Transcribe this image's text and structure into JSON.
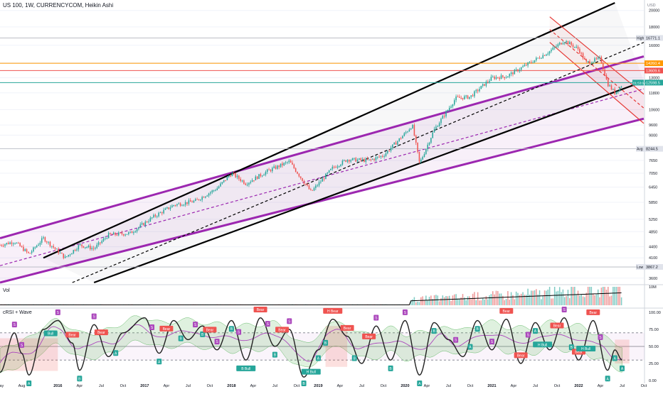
{
  "header": {
    "title": "US 100, 1W, CURRENCYCOM, Heikin Ashi"
  },
  "panes": {
    "volume_label": "Vol",
    "crsi_label": "cRSI + Wave"
  },
  "colors": {
    "up": "#26a69a",
    "down": "#ef5350",
    "purple": "#9c27b0",
    "black": "#000000",
    "red": "#e53935",
    "orange": "#ff9800",
    "wave": "#ab47bc"
  },
  "chart_data": [
    {
      "type": "candlestick",
      "title": "US 100, 1W, CURRENCYCOM, Heikin Ashi",
      "y_unit": "USD",
      "y_scale": "log",
      "ylim": [
        3500,
        21000
      ],
      "x_range": [
        "2015-05",
        "2022-10"
      ],
      "x_tick_labels": [
        "May",
        "Aug",
        "2016",
        "Apr",
        "Jul",
        "Oct",
        "2017",
        "Apr",
        "Jul",
        "Oct",
        "2018",
        "Apr",
        "Jul",
        "Oct",
        "2019",
        "Apr",
        "Jul",
        "Oct",
        "2020",
        "Apr",
        "Jul",
        "Oct",
        "2021",
        "Apr",
        "Jul",
        "Oct",
        "2022",
        "Apr",
        "Jul",
        "Oct"
      ],
      "y_ticks": [
        3600,
        4100,
        4400,
        4850,
        5250,
        5850,
        6450,
        7050,
        7650,
        8250,
        9000,
        9600,
        10600,
        11800,
        13000,
        14300,
        16000,
        18000,
        20000
      ],
      "price_path": [
        [
          "2015-05",
          4450
        ],
        [
          "2015-07",
          4550
        ],
        [
          "2015-09",
          4200
        ],
        [
          "2015-11",
          4650
        ],
        [
          "2016-02",
          4100
        ],
        [
          "2016-04",
          4450
        ],
        [
          "2016-06",
          4350
        ],
        [
          "2016-08",
          4750
        ],
        [
          "2016-11",
          4800
        ],
        [
          "2017-02",
          5300
        ],
        [
          "2017-05",
          5750
        ],
        [
          "2017-08",
          5900
        ],
        [
          "2017-11",
          6400
        ],
        [
          "2018-01",
          7050
        ],
        [
          "2018-03",
          6600
        ],
        [
          "2018-06",
          7150
        ],
        [
          "2018-09",
          7600
        ],
        [
          "2018-12",
          6250
        ],
        [
          "2019-03",
          7300
        ],
        [
          "2019-05",
          7700
        ],
        [
          "2019-08",
          7650
        ],
        [
          "2019-10",
          7900
        ],
        [
          "2020-01",
          9100
        ],
        [
          "2020-02",
          9600
        ],
        [
          "2020-03",
          7500
        ],
        [
          "2020-05",
          9300
        ],
        [
          "2020-08",
          11400
        ],
        [
          "2020-10",
          11500
        ],
        [
          "2021-01",
          13000
        ],
        [
          "2021-03",
          13100
        ],
        [
          "2021-06",
          14200
        ],
        [
          "2021-09",
          15400
        ],
        [
          "2021-11",
          16500
        ],
        [
          "2022-01",
          15600
        ],
        [
          "2022-02",
          14300
        ],
        [
          "2022-04",
          14700
        ],
        [
          "2022-05",
          12500
        ],
        [
          "2022-06",
          11800
        ],
        [
          "2022-07",
          12400
        ]
      ],
      "levels": [
        {
          "label": "High",
          "value": 16771.1
        },
        {
          "label": "",
          "value": 14260.4,
          "color": "#ff9800"
        },
        {
          "label": "",
          "value": 13609.6,
          "color": "#ef5350"
        },
        {
          "label": "",
          "value": 12598.5,
          "color": "#26a69a"
        },
        {
          "label": "Avg",
          "value": 8244.5
        },
        {
          "label": "Low",
          "value": 3867.2
        }
      ],
      "axis_tag": "01:53:00",
      "channels": [
        {
          "name": "",
          "color": "#9c27b0",
          "style": "solid",
          "points": [
            [
              "2015-05",
              4650
            ],
            [
              "2022-10",
              14900
            ]
          ]
        },
        {
          "name": "",
          "color": "#9c27b0",
          "style": "solid",
          "points": [
            [
              "2015-05",
              3500
            ],
            [
              "2022-10",
              10000
            ]
          ]
        },
        {
          "name": "",
          "color": "#9c27b0",
          "style": "dashed",
          "points": [
            [
              "2015-05",
              3900
            ],
            [
              "2022-10",
              12100
            ]
          ]
        },
        {
          "name": "",
          "color": "#000000",
          "style": "solid",
          "points": [
            [
              "2015-11",
              4100
            ],
            [
              "2022-06",
              21000
            ]
          ]
        },
        {
          "name": "",
          "color": "#000000",
          "style": "solid",
          "points": [
            [
              "2016-06",
              3500
            ],
            [
              "2022-10",
              12700
            ]
          ]
        },
        {
          "name": "",
          "color": "#000000",
          "style": "dashed",
          "points": [
            [
              "2016-03",
              3500
            ],
            [
              "2022-10",
              16300
            ]
          ]
        },
        {
          "name": "",
          "color": "#e53935",
          "style": "solid",
          "points": [
            [
              "2021-09",
              19200
            ],
            [
              "2022-10",
              11700
            ]
          ]
        },
        {
          "name": "",
          "color": "#e53935",
          "style": "solid",
          "points": [
            [
              "2021-09",
              16300
            ],
            [
              "2022-10",
              9700
            ]
          ]
        },
        {
          "name": "",
          "color": "#e53935",
          "style": "dashed",
          "points": [
            [
              "2021-09",
              17700
            ],
            [
              "2022-10",
              10700
            ]
          ]
        }
      ]
    },
    {
      "type": "bar",
      "title": "Vol",
      "y_ticks_label": "10M",
      "note": "weekly volume bars with moving average line"
    },
    {
      "type": "line",
      "title": "cRSI + Wave",
      "ylim": [
        0,
        100
      ],
      "y_ticks": [
        100.0,
        75.0,
        50.0,
        25.0,
        0.0
      ],
      "band_levels": [
        30,
        50,
        70
      ],
      "labels": [
        {
          "date": "2015-07",
          "text": "S",
          "kind": "sell"
        },
        {
          "date": "2015-08",
          "text": "S",
          "kind": "sell"
        },
        {
          "date": "2015-09",
          "text": "A",
          "kind": "buy"
        },
        {
          "date": "2015-12",
          "text": "Bull",
          "kind": "buy"
        },
        {
          "date": "2016-01",
          "text": "S",
          "kind": "sell"
        },
        {
          "date": "2016-03",
          "text": "Bear",
          "kind": "bear"
        },
        {
          "date": "2016-04",
          "text": "B",
          "kind": "buy"
        },
        {
          "date": "2016-06",
          "text": "S",
          "kind": "sell"
        },
        {
          "date": "2016-07",
          "text": "Bear",
          "kind": "bear"
        },
        {
          "date": "2016-09",
          "text": "A",
          "kind": "buy"
        },
        {
          "date": "2017-02",
          "text": "S",
          "kind": "sell"
        },
        {
          "date": "2017-03",
          "text": "A",
          "kind": "buy"
        },
        {
          "date": "2017-04",
          "text": "Bear",
          "kind": "bear"
        },
        {
          "date": "2017-06",
          "text": "B",
          "kind": "buy"
        },
        {
          "date": "2017-08",
          "text": "S",
          "kind": "sell"
        },
        {
          "date": "2017-09",
          "text": "B",
          "kind": "buy"
        },
        {
          "date": "2017-10",
          "text": "Bear",
          "kind": "bear"
        },
        {
          "date": "2017-11",
          "text": "S",
          "kind": "sell"
        },
        {
          "date": "2018-01",
          "text": "B",
          "kind": "buy"
        },
        {
          "date": "2018-02",
          "text": "S",
          "kind": "sell"
        },
        {
          "date": "2018-03",
          "text": "B Bull",
          "kind": "buy"
        },
        {
          "date": "2018-05",
          "text": "Bear",
          "kind": "bear"
        },
        {
          "date": "2018-06",
          "text": "S",
          "kind": "sell"
        },
        {
          "date": "2018-07",
          "text": "B",
          "kind": "buy"
        },
        {
          "date": "2018-08",
          "text": "Bear",
          "kind": "bear"
        },
        {
          "date": "2018-09",
          "text": "S",
          "kind": "sell"
        },
        {
          "date": "2018-11",
          "text": "B",
          "kind": "buy"
        },
        {
          "date": "2018-12",
          "text": "H Bull",
          "kind": "buy"
        },
        {
          "date": "2019-01",
          "text": "A",
          "kind": "buy"
        },
        {
          "date": "2019-02",
          "text": "B",
          "kind": "buy"
        },
        {
          "date": "2019-03",
          "text": "H Bear",
          "kind": "bear"
        },
        {
          "date": "2019-05",
          "text": "Bear",
          "kind": "bear"
        },
        {
          "date": "2019-06",
          "text": "B",
          "kind": "buy"
        },
        {
          "date": "2019-08",
          "text": "Bear",
          "kind": "bear"
        },
        {
          "date": "2019-09",
          "text": "S",
          "kind": "sell"
        },
        {
          "date": "2019-11",
          "text": "B",
          "kind": "buy"
        },
        {
          "date": "2020-01",
          "text": "S",
          "kind": "sell"
        },
        {
          "date": "2020-03",
          "text": "A",
          "kind": "buy"
        },
        {
          "date": "2020-05",
          "text": "B",
          "kind": "buy"
        },
        {
          "date": "2020-08",
          "text": "S",
          "kind": "sell"
        },
        {
          "date": "2020-10",
          "text": "A",
          "kind": "buy"
        },
        {
          "date": "2020-11",
          "text": "B",
          "kind": "buy"
        },
        {
          "date": "2021-01",
          "text": "S",
          "kind": "sell"
        },
        {
          "date": "2021-03",
          "text": "Bear",
          "kind": "bear"
        },
        {
          "date": "2021-05",
          "text": "Bear",
          "kind": "bear"
        },
        {
          "date": "2021-06",
          "text": "S",
          "kind": "sell"
        },
        {
          "date": "2021-07",
          "text": "A",
          "kind": "buy"
        },
        {
          "date": "2021-08",
          "text": "H Bull",
          "kind": "buy"
        },
        {
          "date": "2021-10",
          "text": "Bear",
          "kind": "bear"
        },
        {
          "date": "2021-11",
          "text": "S",
          "kind": "sell"
        },
        {
          "date": "2021-12",
          "text": "B",
          "kind": "buy"
        },
        {
          "date": "2022-01",
          "text": "Bear",
          "kind": "bear"
        },
        {
          "date": "2022-02",
          "text": "H Bull",
          "kind": "buy"
        },
        {
          "date": "2022-03",
          "text": "Bear",
          "kind": "bear"
        },
        {
          "date": "2022-04",
          "text": "S",
          "kind": "sell"
        },
        {
          "date": "2022-05",
          "text": "A",
          "kind": "buy"
        },
        {
          "date": "2022-06",
          "text": "A",
          "kind": "buy"
        },
        {
          "date": "2022-07",
          "text": "A",
          "kind": "buy"
        }
      ],
      "crsi_path": [
        [
          "2015-05",
          12
        ],
        [
          "2015-07",
          70
        ],
        [
          "2015-08",
          40
        ],
        [
          "2015-09",
          8
        ],
        [
          "2015-11",
          75
        ],
        [
          "2016-01",
          88
        ],
        [
          "2016-03",
          55
        ],
        [
          "2016-04",
          15
        ],
        [
          "2016-06",
          82
        ],
        [
          "2016-08",
          35
        ],
        [
          "2016-10",
          70
        ],
        [
          "2017-01",
          92
        ],
        [
          "2017-03",
          40
        ],
        [
          "2017-05",
          88
        ],
        [
          "2017-07",
          60
        ],
        [
          "2017-09",
          80
        ],
        [
          "2017-11",
          45
        ],
        [
          "2018-01",
          88
        ],
        [
          "2018-03",
          30
        ],
        [
          "2018-05",
          92
        ],
        [
          "2018-07",
          50
        ],
        [
          "2018-09",
          75
        ],
        [
          "2018-11",
          5
        ],
        [
          "2019-01",
          45
        ],
        [
          "2019-03",
          90
        ],
        [
          "2019-05",
          65
        ],
        [
          "2019-07",
          25
        ],
        [
          "2019-09",
          80
        ],
        [
          "2019-11",
          30
        ],
        [
          "2020-01",
          88
        ],
        [
          "2020-03",
          8
        ],
        [
          "2020-05",
          85
        ],
        [
          "2020-07",
          60
        ],
        [
          "2020-09",
          35
        ],
        [
          "2020-11",
          88
        ],
        [
          "2021-01",
          45
        ],
        [
          "2021-03",
          90
        ],
        [
          "2021-05",
          25
        ],
        [
          "2021-07",
          85
        ],
        [
          "2021-09",
          45
        ],
        [
          "2021-11",
          92
        ],
        [
          "2022-01",
          30
        ],
        [
          "2022-03",
          88
        ],
        [
          "2022-05",
          15
        ],
        [
          "2022-06",
          45
        ],
        [
          "2022-07",
          30
        ]
      ]
    }
  ]
}
